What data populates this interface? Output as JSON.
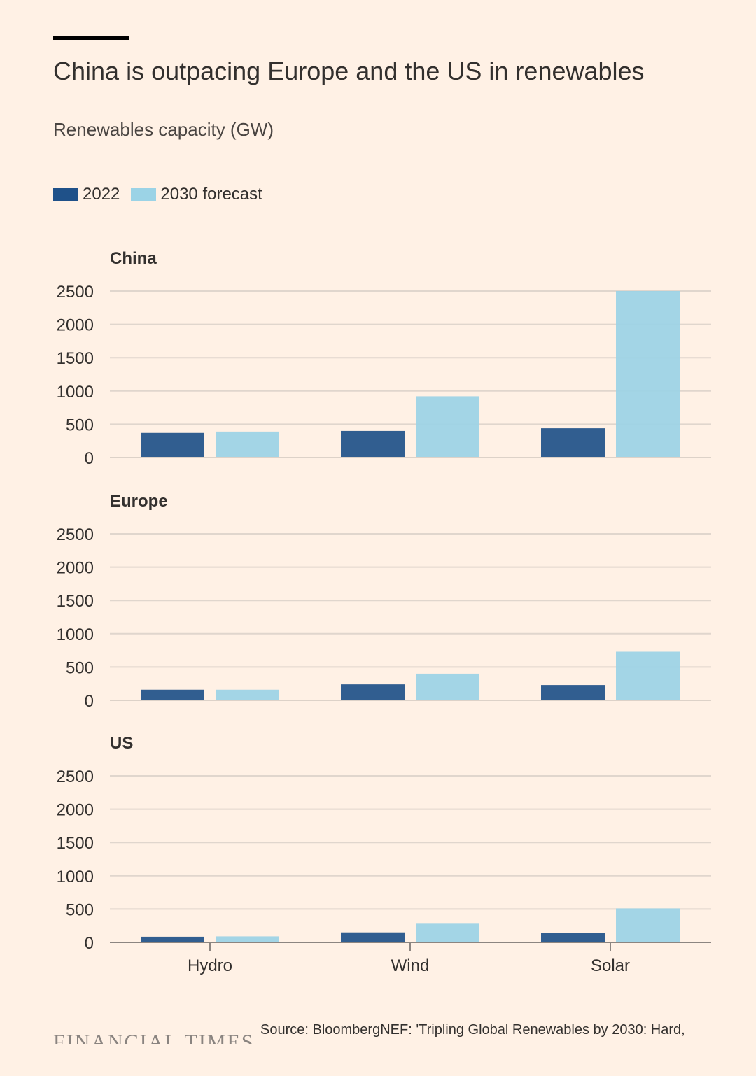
{
  "header": {
    "title": "China is outpacing Europe and the US in renewables",
    "subtitle": "Renewables capacity (GW)"
  },
  "legend": {
    "items": [
      {
        "label": "2022",
        "color": "#1f5189"
      },
      {
        "label": "2030 forecast",
        "color": "#9bd3e6"
      }
    ]
  },
  "chart_data": {
    "type": "bar",
    "categories": [
      "Hydro",
      "Wind",
      "Solar"
    ],
    "ylim": [
      0,
      2500
    ],
    "yticks": [
      0,
      500,
      1000,
      1500,
      2000,
      2500
    ],
    "grid": true,
    "legend_position": "top-left",
    "panels": [
      {
        "title": "China",
        "series": [
          {
            "name": "2022",
            "values": [
              370,
              400,
              440
            ]
          },
          {
            "name": "2030 forecast",
            "values": [
              390,
              920,
              2500
            ]
          }
        ]
      },
      {
        "title": "Europe",
        "series": [
          {
            "name": "2022",
            "values": [
              160,
              240,
              230
            ]
          },
          {
            "name": "2030 forecast",
            "values": [
              160,
              400,
              730
            ]
          }
        ]
      },
      {
        "title": "US",
        "series": [
          {
            "name": "2022",
            "values": [
              85,
              150,
              145
            ]
          },
          {
            "name": "2030 forecast",
            "values": [
              90,
              280,
              510
            ]
          }
        ]
      }
    ]
  },
  "footer": {
    "logo_text": "FINANCIAL TIMES",
    "source": "Source: BloombergNEF: 'Tripling Global Renewables by 2030: Hard,"
  }
}
